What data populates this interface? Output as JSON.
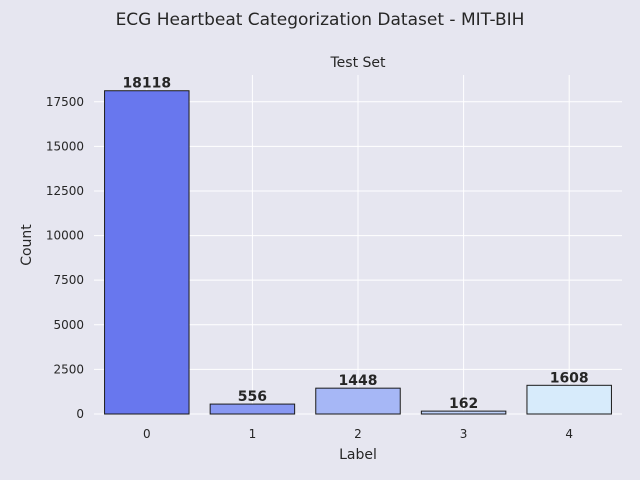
{
  "page": {
    "suptitle": "ECG Heartbeat Categorization Dataset - MIT-BIH"
  },
  "chart_data": {
    "type": "bar",
    "title": "Test Set",
    "xlabel": "Label",
    "ylabel": "Count",
    "categories": [
      "0",
      "1",
      "2",
      "3",
      "4"
    ],
    "values": [
      18118,
      556,
      1448,
      162,
      1608
    ],
    "data_labels": [
      "18118",
      "556",
      "1448",
      "162",
      "1608"
    ],
    "colors": [
      "#6877ee",
      "#8898f2",
      "#a6b7f6",
      "#bdd0f8",
      "#d7ebfb"
    ],
    "ylim": [
      0,
      19000
    ],
    "yticks": [
      0,
      2500,
      5000,
      7500,
      10000,
      12500,
      15000,
      17500
    ],
    "ytick_labels": [
      "0",
      "2500",
      "5000",
      "7500",
      "10000",
      "12500",
      "15000",
      "17500"
    ],
    "grid": true,
    "plot_background": "#e6e6f0",
    "edge_color": "#1a1a1a"
  }
}
